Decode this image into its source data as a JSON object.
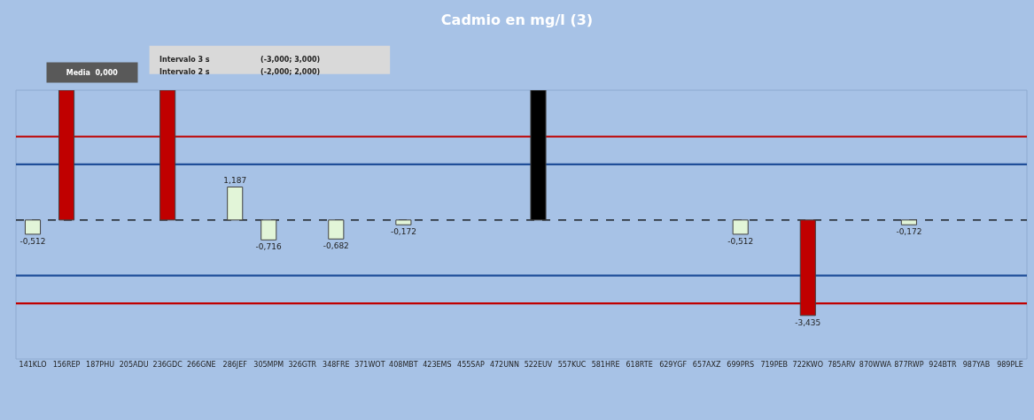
{
  "chart_data": {
    "type": "bar",
    "title": "Cadmio en mg/l (3)",
    "categories": [
      "141KLO",
      "156REP",
      "187PHU",
      "205ADU",
      "236GDC",
      "266GNE",
      "286JEF",
      "305MPM",
      "326GTR",
      "348FRE",
      "371WOT",
      "408MBT",
      "423EMS",
      "455SAP",
      "472UNN",
      "522EUV",
      "557KUC",
      "581HRE",
      "618RTE",
      "629YGF",
      "657AXZ",
      "699PRS",
      "719PEB",
      "722KWO",
      "785ARV",
      "870WWA",
      "877RWP",
      "924BTR",
      "987YAB",
      "989PLE"
    ],
    "values": [
      -0.512,
      4.67,
      null,
      null,
      4.67,
      null,
      1.187,
      -0.716,
      null,
      -0.682,
      null,
      -0.172,
      null,
      null,
      null,
      4.67,
      null,
      null,
      null,
      null,
      null,
      -0.512,
      null,
      -3.435,
      null,
      null,
      -0.172,
      null,
      null,
      null
    ],
    "colors": [
      "#e2f5d8",
      "#c00000",
      null,
      null,
      "#c00000",
      null,
      "#e2f5d8",
      "#e2f5d8",
      null,
      "#e2f5d8",
      null,
      "#e2f5d8",
      null,
      null,
      null,
      "#000000",
      null,
      null,
      null,
      null,
      null,
      "#e2f5d8",
      null,
      "#c00000",
      null,
      null,
      "#e2f5d8",
      null,
      null,
      null
    ],
    "value_labels": [
      "-0,512",
      null,
      null,
      null,
      null,
      null,
      "1,187",
      "-0,716",
      null,
      "-0,682",
      null,
      "-0,172",
      null,
      null,
      null,
      null,
      null,
      null,
      null,
      null,
      null,
      "-0,512",
      null,
      "-3,435",
      null,
      null,
      "-0,172",
      null,
      null,
      null
    ],
    "ylim": [
      -5,
      4.67
    ],
    "tick_labels": "x",
    "grid": false,
    "legend": false,
    "ref_lines": [
      {
        "axis": "y",
        "value": 0,
        "color": "#000000",
        "line_style": "dashed"
      },
      {
        "axis": "y",
        "value": 2,
        "color": "#1f4e99",
        "line_style": "solid"
      },
      {
        "axis": "y",
        "value": -2,
        "color": "#1f4e99",
        "line_style": "solid"
      },
      {
        "axis": "y",
        "value": 3,
        "color": "#c00000",
        "line_style": "solid"
      },
      {
        "axis": "y",
        "value": -3,
        "color": "#c00000",
        "line_style": "solid"
      }
    ],
    "annotations": [
      "Media  0,000",
      "Intervalo 3 s",
      "(-3,000; 3,000)",
      "Intervalo 2 s",
      "(-2,000; 2,000)"
    ]
  }
}
